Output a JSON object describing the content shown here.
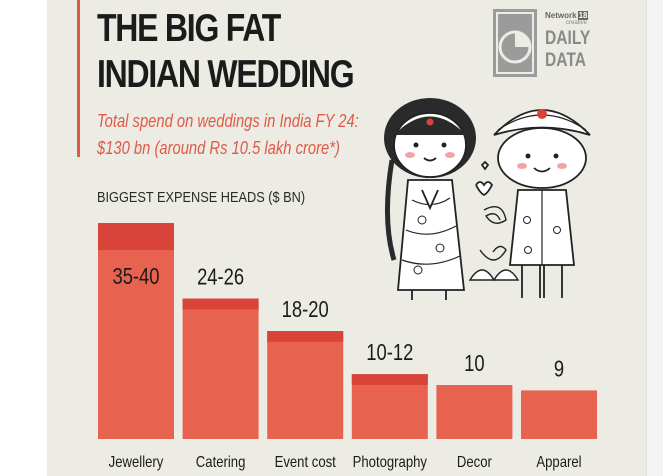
{
  "header": {
    "title_line1": "THE BIG FAT",
    "title_line2": "INDIAN WEDDING",
    "subtitle_line1": "Total spend on weddings in India FY 24:",
    "subtitle_line2": "$130 bn (around Rs 10.5 lakh crore*)"
  },
  "logo": {
    "network": "Network",
    "network_num": "18",
    "network_sub": "creative",
    "line1": "DAILY",
    "line2": "DATA",
    "icon": "pie-clock-icon"
  },
  "illustration": {
    "icon": "bride-groom-illustration"
  },
  "colors": {
    "bar": "#e8634f",
    "bar_top": "#d8443a",
    "accent": "#e05a48",
    "background": "#ecebe4"
  },
  "chart_data": {
    "type": "bar",
    "ylabel": "BIGGEST EXPENSE HEADS ($ BN)",
    "categories": [
      "Jewellery",
      "Catering",
      "Event cost",
      "Photography",
      "Decor",
      "Apparel"
    ],
    "values": [
      40,
      26,
      20,
      12,
      10,
      9
    ],
    "range_low": [
      35,
      24,
      18,
      10,
      10,
      9
    ],
    "data_labels": [
      "35-40",
      "24-26",
      "18-20",
      "10-12",
      "10",
      "9"
    ],
    "ylim": [
      0,
      40
    ],
    "grid": false,
    "legend": "none"
  }
}
